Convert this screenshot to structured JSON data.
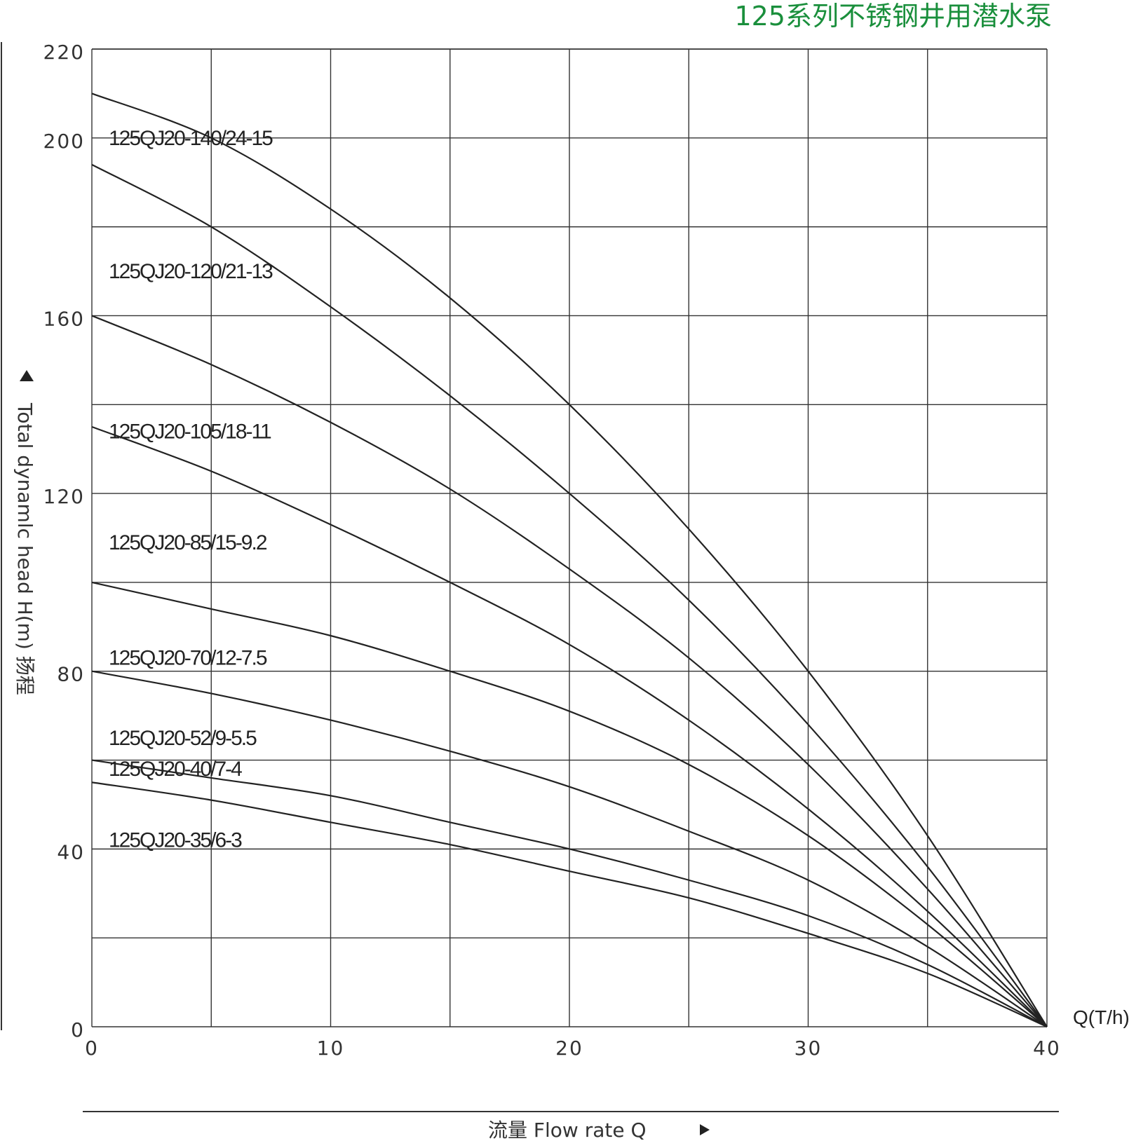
{
  "chart_data": {
    "type": "line",
    "title": "125系列不锈钢井用潜水泵",
    "xlabel": "流量  Flow rate Q",
    "ylabel": "Total dynamlc head H(m) 扬程",
    "x_unit": "Q(T/h)",
    "xlim": [
      0,
      40
    ],
    "ylim": [
      0,
      220
    ],
    "x_ticks": [
      "0",
      "10",
      "20",
      "30",
      "40"
    ],
    "y_ticks": [
      "0",
      "40",
      "80",
      "120",
      "160",
      "200",
      "220"
    ],
    "grid": true,
    "colors": {
      "title": "#1a8f3c",
      "lines": "#222222",
      "grid": "#333333"
    },
    "series": [
      {
        "name": "125QJ20-140/24-15",
        "x": [
          0,
          5,
          10,
          15,
          20,
          25,
          30,
          35,
          40
        ],
        "y": [
          210,
          200,
          184,
          164,
          140,
          112,
          80,
          43,
          0
        ]
      },
      {
        "name": "125QJ20-120/21-13",
        "x": [
          0,
          5,
          10,
          15,
          20,
          25,
          30,
          35,
          40
        ],
        "y": [
          194,
          180,
          162,
          142,
          120,
          96,
          68,
          36,
          0
        ]
      },
      {
        "name": "125QJ20-105/18-11",
        "x": [
          0,
          5,
          10,
          15,
          20,
          25,
          30,
          35,
          40
        ],
        "y": [
          160,
          149,
          136,
          121,
          103,
          83,
          59,
          31,
          0
        ]
      },
      {
        "name": "125QJ20-85/15-9.2",
        "x": [
          0,
          5,
          10,
          15,
          20,
          25,
          30,
          35,
          40
        ],
        "y": [
          135,
          125,
          113,
          100,
          86,
          69,
          49,
          26,
          0
        ]
      },
      {
        "name": "125QJ20-70/12-7.5",
        "x": [
          0,
          5,
          10,
          15,
          20,
          25,
          30,
          35,
          40
        ],
        "y": [
          100,
          94,
          88,
          80,
          71,
          59,
          43,
          23,
          0
        ]
      },
      {
        "name": "125QJ20-52/9-5.5",
        "x": [
          0,
          5,
          10,
          15,
          20,
          25,
          30,
          35,
          40
        ],
        "y": [
          80,
          75,
          69,
          62,
          54,
          44,
          33,
          18,
          0
        ]
      },
      {
        "name": "125QJ20-40/7-4",
        "x": [
          0,
          5,
          10,
          15,
          20,
          25,
          30,
          35,
          40
        ],
        "y": [
          60,
          56,
          52,
          46,
          40,
          33,
          25,
          14,
          0
        ]
      },
      {
        "name": "125QJ20-35/6-3",
        "x": [
          0,
          5,
          10,
          15,
          20,
          25,
          30,
          35,
          40
        ],
        "y": [
          55,
          51,
          46,
          41,
          35,
          29,
          21,
          12,
          0
        ]
      }
    ],
    "labels": [
      {
        "text": "125QJ20-140/24-15",
        "at_y": 200
      },
      {
        "text": "125QJ20-120/21-13",
        "at_y": 170
      },
      {
        "text": "125QJ20-105/18-11",
        "at_y": 134
      },
      {
        "text": "125QJ20-85/15-9.2",
        "at_y": 109
      },
      {
        "text": "125QJ20-70/12-7.5",
        "at_y": 83
      },
      {
        "text": "125QJ20-52/9-5.5",
        "at_y": 65
      },
      {
        "text": "125QJ20-40/7-4",
        "at_y": 58
      },
      {
        "text": "125QJ20-35/6-3",
        "at_y": 42
      }
    ]
  }
}
